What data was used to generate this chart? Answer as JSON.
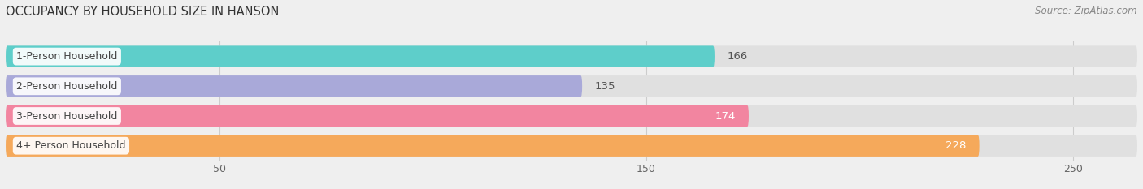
{
  "title": "OCCUPANCY BY HOUSEHOLD SIZE IN HANSON",
  "source": "Source: ZipAtlas.com",
  "categories": [
    "1-Person Household",
    "2-Person Household",
    "3-Person Household",
    "4+ Person Household"
  ],
  "values": [
    166,
    135,
    174,
    228
  ],
  "bar_colors": [
    "#5ececa",
    "#a9a9d9",
    "#f285a0",
    "#f5a95b"
  ],
  "label_colors": [
    "#555555",
    "#555555",
    "#ffffff",
    "#ffffff"
  ],
  "xlim_min": 0,
  "xlim_max": 265,
  "xticks": [
    50,
    150,
    250
  ],
  "background_color": "#efefef",
  "bar_background_color": "#e0e0e0",
  "title_fontsize": 10.5,
  "source_fontsize": 8.5,
  "bar_label_fontsize": 9.5,
  "category_fontsize": 9,
  "bar_height": 0.72,
  "bar_gap": 0.28
}
